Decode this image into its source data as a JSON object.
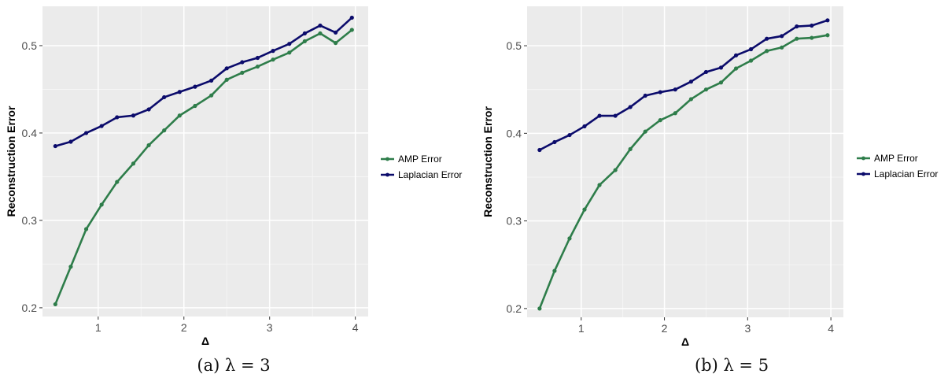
{
  "chart_data": [
    {
      "type": "line",
      "caption": "(a) λ = 3",
      "xlabel": "Δ",
      "ylabel": "Reconstruction Error",
      "xlim": [
        0.35,
        4.15
      ],
      "ylim": [
        0.19,
        0.545
      ],
      "xticks": [
        1,
        2,
        3,
        4
      ],
      "yticks": [
        0.2,
        0.3,
        0.4,
        0.5
      ],
      "x": [
        0.5,
        0.68,
        0.86,
        1.04,
        1.22,
        1.41,
        1.59,
        1.77,
        1.95,
        2.13,
        2.32,
        2.5,
        2.68,
        2.86,
        3.04,
        3.23,
        3.41,
        3.59,
        3.77,
        3.96
      ],
      "series": [
        {
          "name": "AMP Error",
          "color": "#2e7d4a",
          "values": [
            0.204,
            0.247,
            0.29,
            0.318,
            0.344,
            0.365,
            0.386,
            0.403,
            0.42,
            0.431,
            0.443,
            0.461,
            0.469,
            0.476,
            0.484,
            0.492,
            0.505,
            0.514,
            0.503,
            0.518
          ]
        },
        {
          "name": "Laplacian Error",
          "color": "#0b0b6b",
          "values": [
            0.385,
            0.39,
            0.4,
            0.408,
            0.418,
            0.42,
            0.427,
            0.441,
            0.447,
            0.453,
            0.46,
            0.474,
            0.481,
            0.486,
            0.494,
            0.502,
            0.514,
            0.523,
            0.515,
            0.532
          ]
        }
      ],
      "legend": "right",
      "grid": true
    },
    {
      "type": "line",
      "caption": "(b) λ = 5",
      "xlabel": "Δ",
      "ylabel": "Reconstruction Error",
      "xlim": [
        0.35,
        4.15
      ],
      "ylim": [
        0.19,
        0.545
      ],
      "xticks": [
        1,
        2,
        3,
        4
      ],
      "yticks": [
        0.2,
        0.3,
        0.4,
        0.5
      ],
      "x": [
        0.5,
        0.68,
        0.86,
        1.04,
        1.22,
        1.41,
        1.59,
        1.77,
        1.95,
        2.13,
        2.32,
        2.5,
        2.68,
        2.86,
        3.04,
        3.23,
        3.41,
        3.59,
        3.77,
        3.96
      ],
      "series": [
        {
          "name": "AMP Error",
          "color": "#2e7d4a",
          "values": [
            0.2,
            0.243,
            0.28,
            0.313,
            0.341,
            0.358,
            0.382,
            0.402,
            0.415,
            0.423,
            0.439,
            0.45,
            0.458,
            0.474,
            0.483,
            0.494,
            0.498,
            0.508,
            0.509,
            0.512
          ]
        },
        {
          "name": "Laplacian Error",
          "color": "#0b0b6b",
          "values": [
            0.381,
            0.39,
            0.398,
            0.408,
            0.42,
            0.42,
            0.43,
            0.443,
            0.447,
            0.45,
            0.459,
            0.47,
            0.475,
            0.489,
            0.496,
            0.508,
            0.511,
            0.522,
            0.523,
            0.529
          ]
        }
      ],
      "legend": "right",
      "grid": true
    }
  ]
}
